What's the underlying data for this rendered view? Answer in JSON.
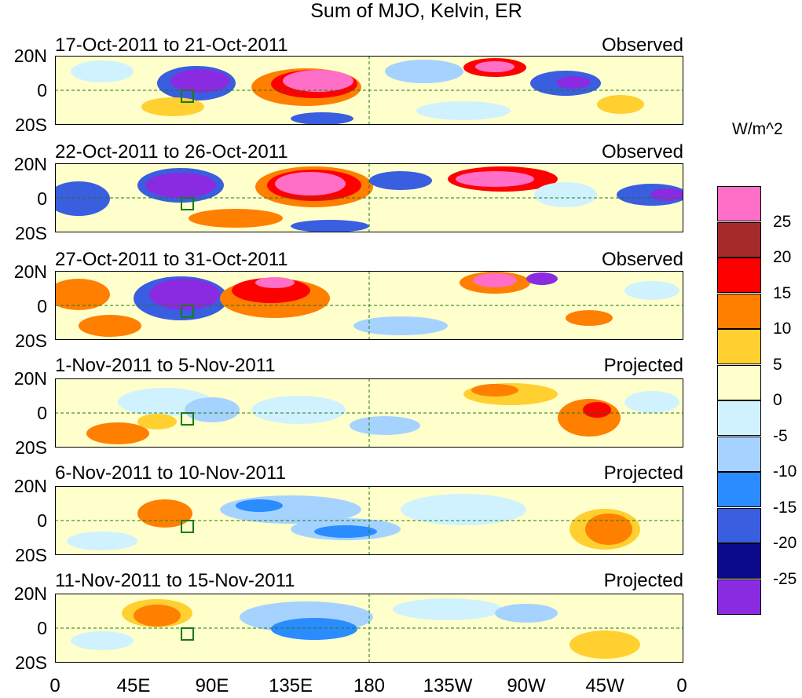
{
  "title": "Sum of MJO, Kelvin, ER",
  "lat_labels": [
    "20N",
    "0",
    "20S"
  ],
  "lon_ticks": [
    "0",
    "45E",
    "90E",
    "135E",
    "180",
    "135W",
    "90W",
    "45W",
    "0"
  ],
  "panels": [
    {
      "dates": "17-Oct-2011 to 21-Oct-2011",
      "type": "Observed"
    },
    {
      "dates": "22-Oct-2011 to 26-Oct-2011",
      "type": "Observed"
    },
    {
      "dates": "27-Oct-2011 to 31-Oct-2011",
      "type": "Observed"
    },
    {
      "dates": "1-Nov-2011 to 5-Nov-2011",
      "type": "Projected"
    },
    {
      "dates": "6-Nov-2011 to 10-Nov-2011",
      "type": "Projected"
    },
    {
      "dates": "11-Nov-2011 to 15-Nov-2011",
      "type": "Projected"
    }
  ],
  "colorbar": {
    "units": "W/m^2",
    "labels": [
      "25",
      "20",
      "15",
      "10",
      "5",
      "0",
      "-5",
      "-10",
      "-15",
      "-20",
      "-25"
    ],
    "colors": [
      "#ff6ec7",
      "#a52a2a",
      "#ff0000",
      "#ff7f00",
      "#ffd030",
      "#ffffcc",
      "#d0f2ff",
      "#a6d2ff",
      "#2a8cff",
      "#3a5ee0",
      "#0a0a8a",
      "#8a2be2"
    ]
  }
}
